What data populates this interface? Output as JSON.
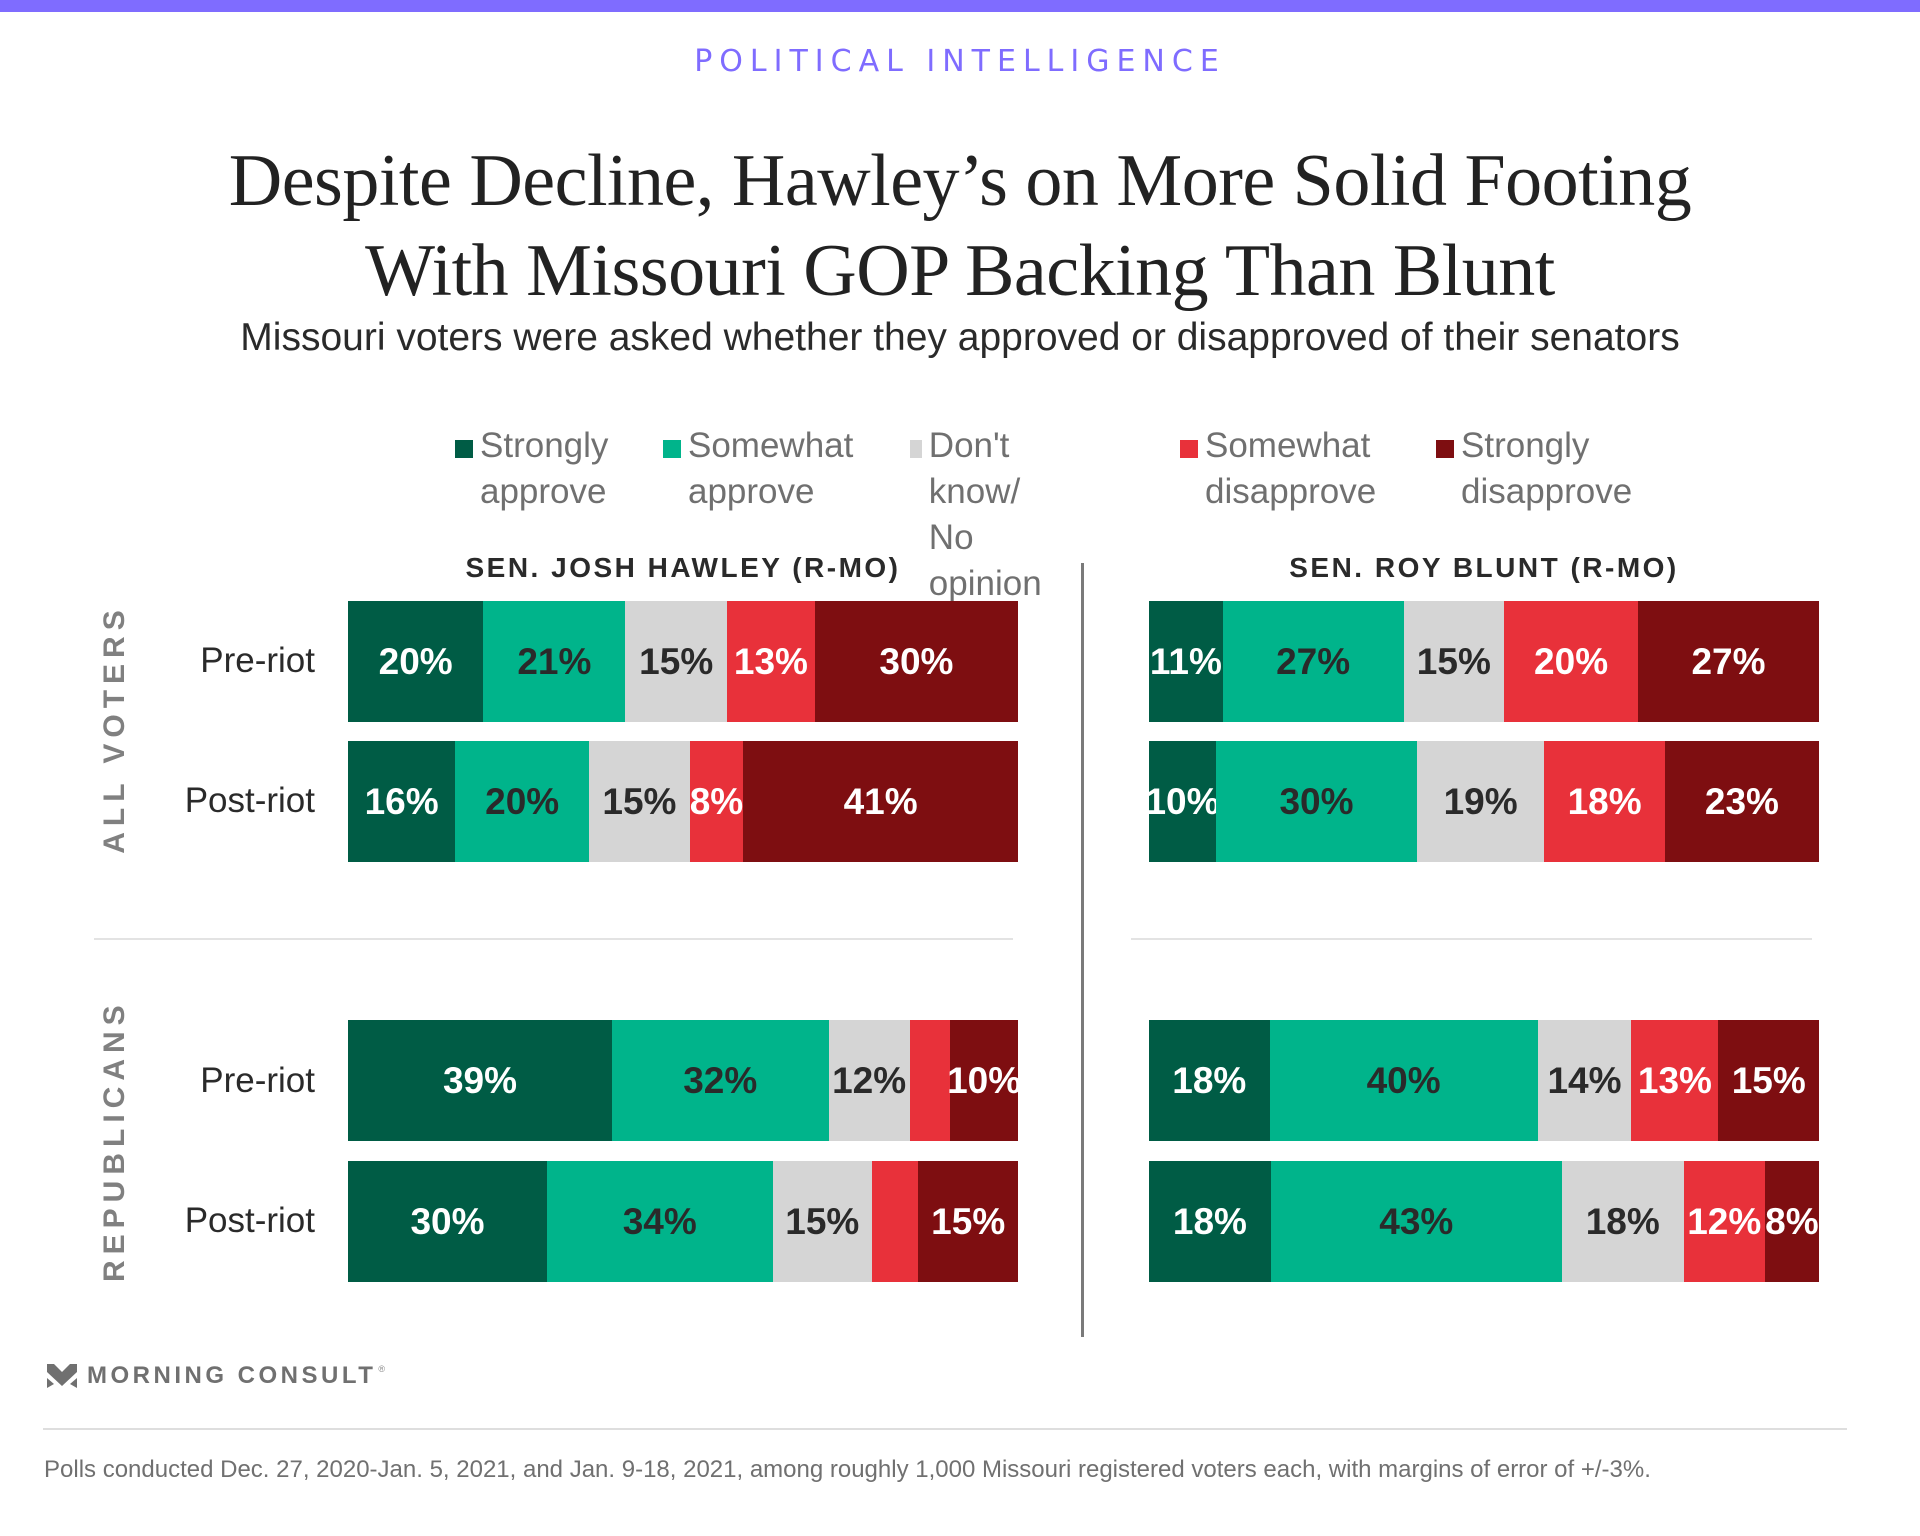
{
  "brand": {
    "accent_color": "#7f6cff",
    "kicker": "POLITICAL INTELLIGENCE",
    "logo_text": "MORNING CONSULT",
    "logo_mark": "®"
  },
  "header": {
    "title_line1": "Despite Decline, Hawley’s on More Solid Footing",
    "title_line2": "With Missouri GOP Backing Than Blunt",
    "subtitle": "Missouri voters were asked whether they approved or disapproved of their senators"
  },
  "footer": {
    "note": "Polls conducted Dec. 27, 2020-Jan. 5, 2021, and Jan. 9-18, 2021, among roughly 1,000 Missouri registered voters each, with margins of error of +/-3%."
  },
  "chart_data": {
    "type": "bar",
    "orientation": "horizontal",
    "stacked": true,
    "normalized": true,
    "title": "Despite Decline, Hawley’s on More Solid Footing With Missouri GOP Backing Than Blunt",
    "subtitle": "Missouri voters were asked whether they approved or disapproved of their senators",
    "legend_position": "top",
    "legend": [
      {
        "key": "strongly_approve",
        "label": "Strongly\napprove",
        "color": "#005c45",
        "text_color": "#ffffff"
      },
      {
        "key": "somewhat_approve",
        "label": "Somewhat\napprove",
        "color": "#00b48b",
        "text_color": "#2a2a2a"
      },
      {
        "key": "dont_know",
        "label": "Don't know/\nNo opinion",
        "color": "#d5d5d5",
        "text_color": "#2a2a2a"
      },
      {
        "key": "somewhat_disapprove",
        "label": "Somewhat\ndisapprove",
        "color": "#e8313a",
        "text_color": "#ffffff"
      },
      {
        "key": "strongly_disapprove",
        "label": "Strongly\ndisapprove",
        "color": "#7e0e11",
        "text_color": "#ffffff"
      }
    ],
    "panels": [
      {
        "header": "SEN. JOSH HAWLEY (R-MO)",
        "groups": [
          {
            "label": "ALL VOTERS",
            "rows": [
              {
                "label": "Pre-riot",
                "values": [
                  20,
                  21,
                  15,
                  13,
                  30
                ],
                "labels": [
                  "20%",
                  "21%",
                  "15%",
                  "13%",
                  "30%"
                ]
              },
              {
                "label": "Post-riot",
                "values": [
                  16,
                  20,
                  15,
                  8,
                  41
                ],
                "labels": [
                  "16%",
                  "20%",
                  "15%",
                  "8%",
                  "41%"
                ]
              }
            ]
          },
          {
            "label": "REPUBLICANS",
            "rows": [
              {
                "label": "Pre-riot",
                "values": [
                  39,
                  32,
                  12,
                  6,
                  10
                ],
                "labels": [
                  "39%",
                  "32%",
                  "12%",
                  "",
                  "10%"
                ]
              },
              {
                "label": "Post-riot",
                "values": [
                  30,
                  34,
                  15,
                  7,
                  15
                ],
                "labels": [
                  "30%",
                  "34%",
                  "15%",
                  "",
                  "15%"
                ]
              }
            ]
          }
        ]
      },
      {
        "header": "SEN. ROY BLUNT (R-MO)",
        "groups": [
          {
            "label": "ALL VOTERS",
            "rows": [
              {
                "label": "Pre-riot",
                "values": [
                  11,
                  27,
                  15,
                  20,
                  27
                ],
                "labels": [
                  "11%",
                  "27%",
                  "15%",
                  "20%",
                  "27%"
                ]
              },
              {
                "label": "Post-riot",
                "values": [
                  10,
                  30,
                  19,
                  18,
                  23
                ],
                "labels": [
                  "10%",
                  "30%",
                  "19%",
                  "18%",
                  "23%"
                ]
              }
            ]
          },
          {
            "label": "REPUBLICANS",
            "rows": [
              {
                "label": "Pre-riot",
                "values": [
                  18,
                  40,
                  14,
                  13,
                  15
                ],
                "labels": [
                  "18%",
                  "40%",
                  "14%",
                  "13%",
                  "15%"
                ]
              },
              {
                "label": "Post-riot",
                "values": [
                  18,
                  43,
                  18,
                  12,
                  8
                ],
                "labels": [
                  "18%",
                  "43%",
                  "18%",
                  "12%",
                  "8%"
                ]
              }
            ]
          }
        ]
      }
    ]
  }
}
